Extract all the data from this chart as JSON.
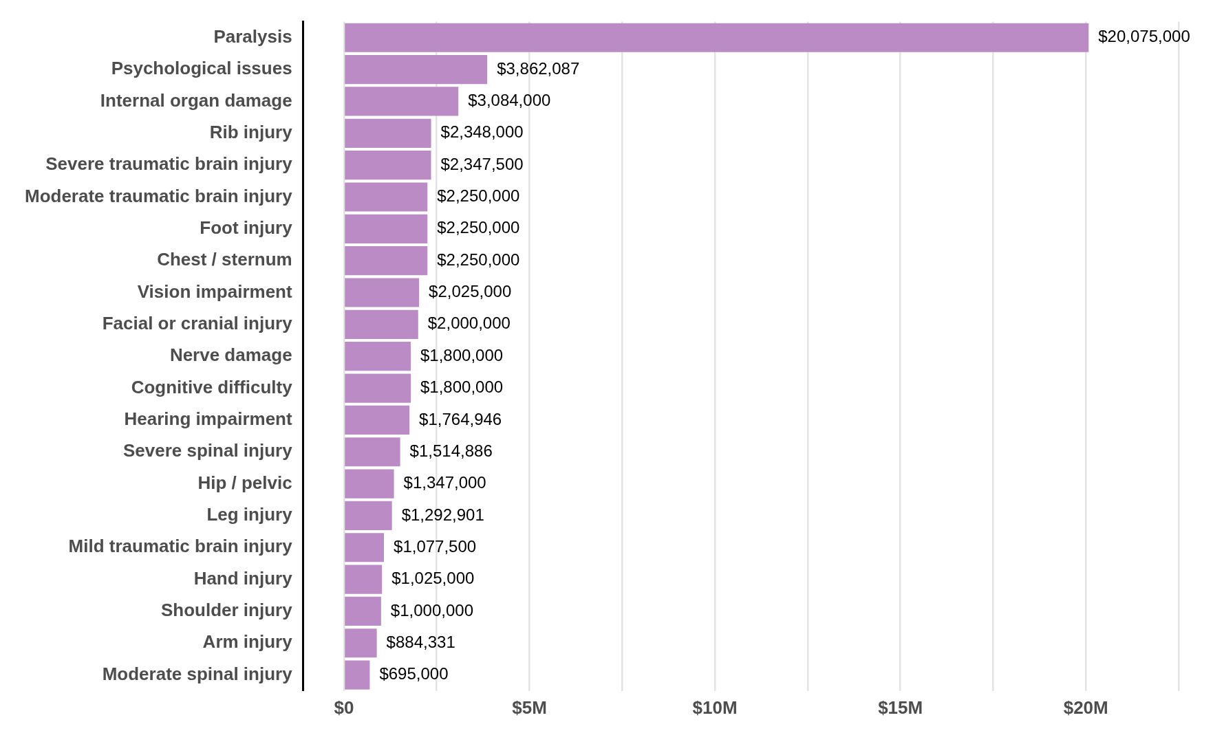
{
  "chart_data": {
    "type": "bar",
    "orientation": "horizontal",
    "categories": [
      "Paralysis",
      "Psychological issues",
      "Internal organ damage",
      "Rib injury",
      "Severe traumatic brain injury",
      "Moderate traumatic brain injury",
      "Foot injury",
      "Chest / sternum",
      "Vision impairment",
      "Facial or cranial injury",
      "Nerve damage",
      "Cognitive difficulty",
      "Hearing impairment",
      "Severe spinal injury",
      "Hip / pelvic",
      "Leg injury",
      "Mild traumatic brain injury",
      "Hand injury",
      "Shoulder injury",
      "Arm injury",
      "Moderate spinal injury"
    ],
    "values": [
      20075000,
      3862087,
      3084000,
      2348000,
      2347500,
      2250000,
      2250000,
      2250000,
      2025000,
      2000000,
      1800000,
      1800000,
      1764946,
      1514886,
      1347000,
      1292901,
      1077500,
      1025000,
      1000000,
      884331,
      695000
    ],
    "value_labels": [
      "$20,075,000",
      "$3,862,087",
      "$3,084,000",
      "$2,348,000",
      "$2,347,500",
      "$2,250,000",
      "$2,250,000",
      "$2,250,000",
      "$2,025,000",
      "$2,000,000",
      "$1,800,000",
      "$1,800,000",
      "$1,764,946",
      "$1,514,886",
      "$1,347,000",
      "$1,292,901",
      "$1,077,500",
      "$1,025,000",
      "$1,000,000",
      "$884,331",
      "$695,000"
    ],
    "color": "#bb8bc5",
    "xlim": [
      -1100000,
      22500000
    ],
    "xticks": [
      {
        "value": 0,
        "label": "$0"
      },
      {
        "value": 2500000,
        "label": null
      },
      {
        "value": 5000000,
        "label": "$5M"
      },
      {
        "value": 7500000,
        "label": null
      },
      {
        "value": 10000000,
        "label": "$10M"
      },
      {
        "value": 12500000,
        "label": null
      },
      {
        "value": 15000000,
        "label": "$15M"
      },
      {
        "value": 17500000,
        "label": null
      },
      {
        "value": 20000000,
        "label": "$20M"
      },
      {
        "value": 22500000,
        "label": null
      }
    ],
    "grid": "x",
    "legend": false
  }
}
